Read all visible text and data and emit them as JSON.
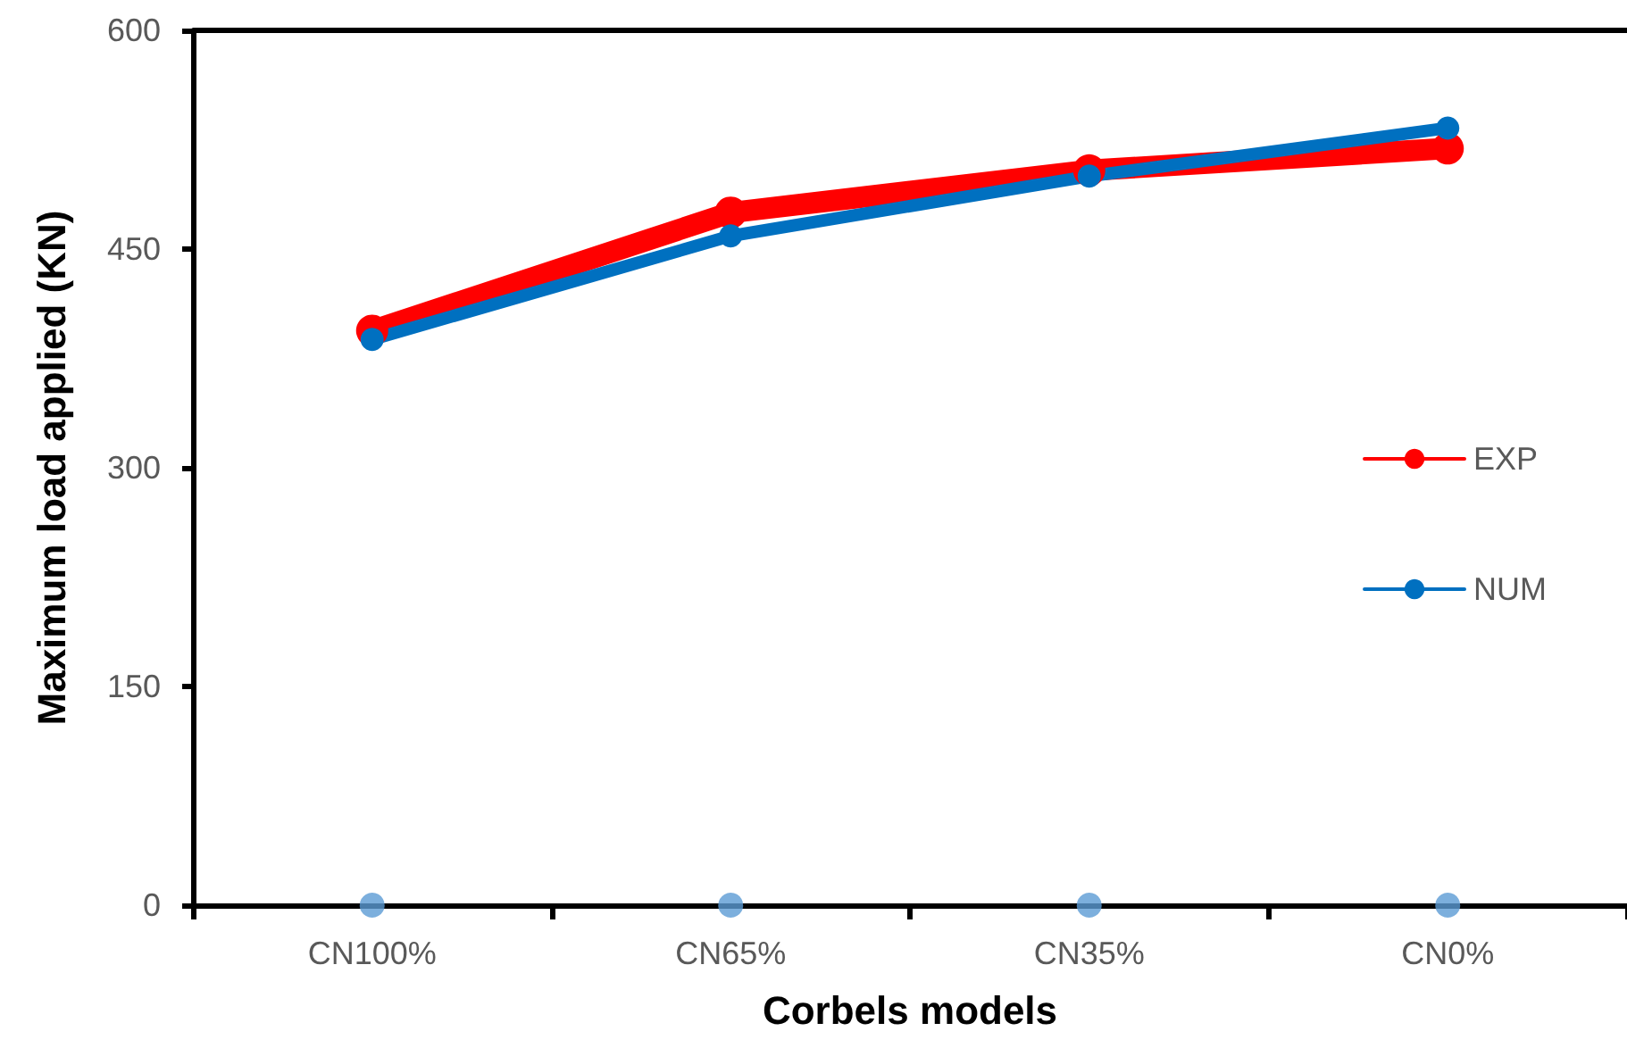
{
  "chart_data": {
    "type": "line",
    "xlabel": "Corbels models",
    "ylabel": "Maximum load applied (KN)",
    "categories": [
      "CN100%",
      "CN65%",
      "CN35%",
      "CN0%"
    ],
    "series": [
      {
        "name": "EXP",
        "color": "#ff0000",
        "values": [
          394,
          475,
          504,
          519
        ]
      },
      {
        "name": "NUM",
        "color": "#0070c0",
        "values": [
          388,
          459,
          500,
          533
        ]
      },
      {
        "type": "scatter",
        "color": "#5b9bd5",
        "values": [
          0,
          0,
          0,
          0
        ]
      }
    ],
    "ylim": [
      0,
      600
    ],
    "yticks": [
      0,
      150,
      300,
      450,
      600
    ],
    "grid": false,
    "legend": "right",
    "marker": "circle",
    "line_style": "solid"
  }
}
